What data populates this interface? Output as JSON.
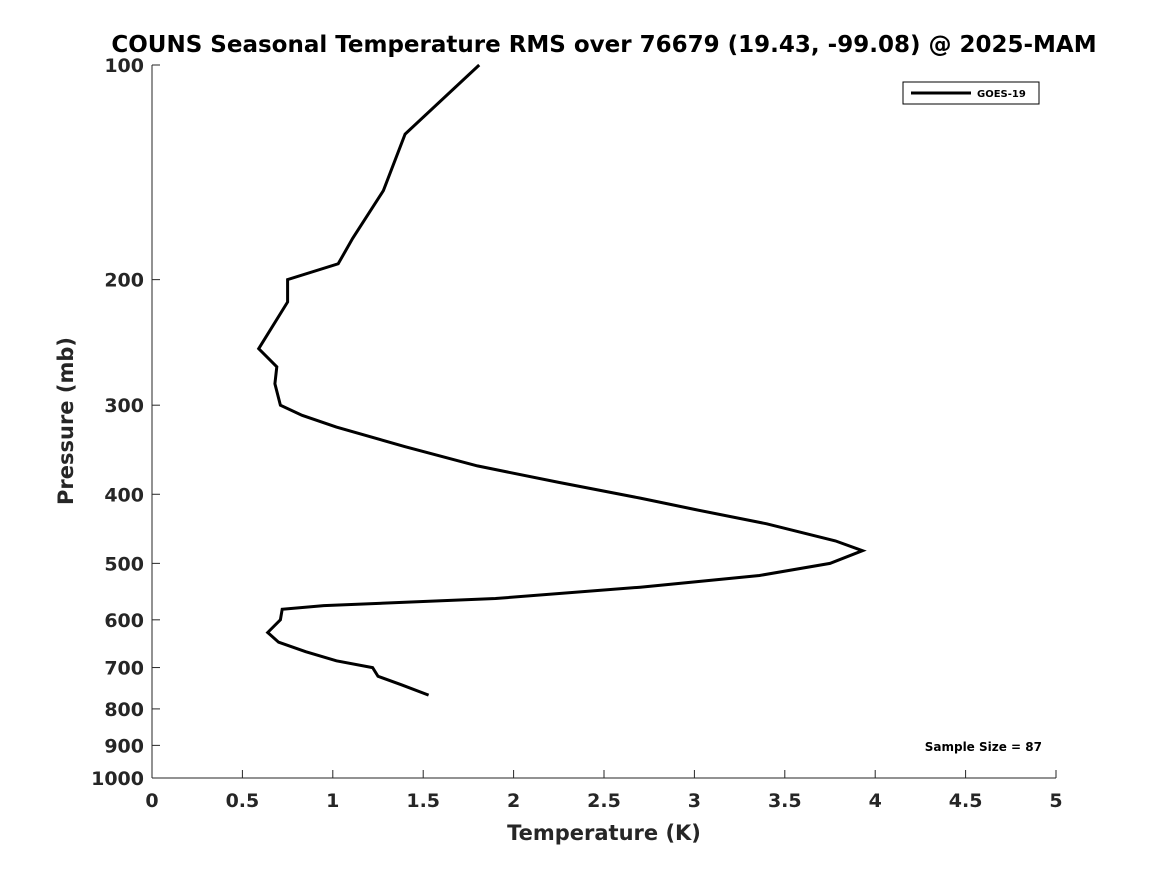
{
  "chart_data": {
    "type": "line",
    "title": "COUNS Seasonal Temperature RMS over 76679 (19.43, -99.08) @ 2025-MAM",
    "xlabel": "Temperature (K)",
    "ylabel": "Pressure (mb)",
    "xlim": [
      0,
      5
    ],
    "ylim": [
      100,
      1000
    ],
    "y_scale": "log",
    "y_reversed": true,
    "grid": false,
    "legend_position": "top-right",
    "x_ticks": [
      0,
      0.5,
      1,
      1.5,
      2,
      2.5,
      3,
      3.5,
      4,
      4.5,
      5
    ],
    "x_tick_labels": [
      "0",
      "0.5",
      "1",
      "1.5",
      "2",
      "2.5",
      "3",
      "3.5",
      "4",
      "4.5",
      "5"
    ],
    "y_ticks": [
      100,
      200,
      300,
      400,
      500,
      600,
      700,
      800,
      900,
      1000
    ],
    "y_tick_labels": [
      "100",
      "200",
      "300",
      "400",
      "500",
      "600",
      "700",
      "800",
      "900",
      "1000"
    ],
    "annotation": "Sample Size = 87",
    "series": [
      {
        "name": "GOES-19",
        "color": "#000000",
        "points": [
          {
            "x": 1.81,
            "y": 100
          },
          {
            "x": 1.4,
            "y": 125
          },
          {
            "x": 1.28,
            "y": 150
          },
          {
            "x": 1.11,
            "y": 175
          },
          {
            "x": 1.03,
            "y": 190
          },
          {
            "x": 0.75,
            "y": 200
          },
          {
            "x": 0.75,
            "y": 215
          },
          {
            "x": 0.59,
            "y": 250
          },
          {
            "x": 0.69,
            "y": 265
          },
          {
            "x": 0.68,
            "y": 280
          },
          {
            "x": 0.71,
            "y": 300
          },
          {
            "x": 0.83,
            "y": 310
          },
          {
            "x": 1.02,
            "y": 322
          },
          {
            "x": 1.4,
            "y": 343
          },
          {
            "x": 1.8,
            "y": 365
          },
          {
            "x": 2.25,
            "y": 385
          },
          {
            "x": 2.7,
            "y": 405
          },
          {
            "x": 3.0,
            "y": 420
          },
          {
            "x": 3.4,
            "y": 440
          },
          {
            "x": 3.78,
            "y": 465
          },
          {
            "x": 3.93,
            "y": 480
          },
          {
            "x": 3.75,
            "y": 500
          },
          {
            "x": 3.36,
            "y": 520
          },
          {
            "x": 2.7,
            "y": 540
          },
          {
            "x": 1.9,
            "y": 560
          },
          {
            "x": 1.4,
            "y": 567
          },
          {
            "x": 0.95,
            "y": 573
          },
          {
            "x": 0.72,
            "y": 580
          },
          {
            "x": 0.71,
            "y": 600
          },
          {
            "x": 0.64,
            "y": 625
          },
          {
            "x": 0.7,
            "y": 645
          },
          {
            "x": 0.85,
            "y": 665
          },
          {
            "x": 1.02,
            "y": 685
          },
          {
            "x": 1.22,
            "y": 700
          },
          {
            "x": 1.25,
            "y": 720
          },
          {
            "x": 1.38,
            "y": 740
          },
          {
            "x": 1.53,
            "y": 765
          }
        ]
      }
    ]
  }
}
